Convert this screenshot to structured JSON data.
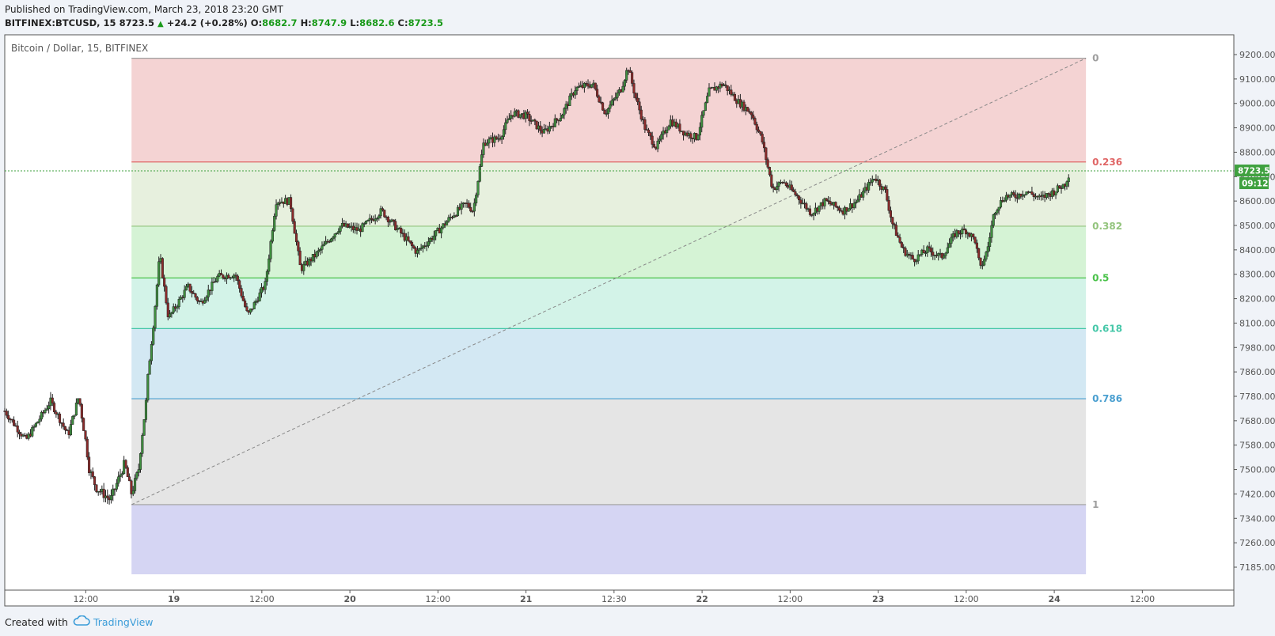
{
  "header": {
    "published": "Published on TradingView.com, March 23, 2018 23:20 GMT",
    "symbol": "BITFINEX:BTCUSD, 15",
    "last": "8723.5",
    "change": "+24.2 (+0.28%)",
    "o_label": "O:",
    "o_value": "8682.7",
    "h_label": "H:",
    "h_value": "8747.9",
    "l_label": "L:",
    "l_value": "8682.6",
    "c_label": "C:",
    "c_value": "8723.5"
  },
  "footer": {
    "created_with": "Created with",
    "brand": "TradingView"
  },
  "chart_data": {
    "type": "candlestick",
    "title": "Bitcoin / Dollar, 15, BITFINEX",
    "ylim": [
      7150,
      9260
    ],
    "y_ticks": [
      "9200.00",
      "9100.00",
      "9000.00",
      "8900.00",
      "8800.00",
      "8700.00",
      "8600.00",
      "8500.00",
      "8400.00",
      "8300.00",
      "8200.00",
      "8100.00",
      "7980.00",
      "7860.00",
      "7780.00",
      "7680.00",
      "7580.00",
      "7500.00",
      "7420.00",
      "7340.00",
      "7260.00",
      "7185.00"
    ],
    "y_tick_values": [
      9200,
      9100,
      9000,
      8900,
      8800,
      8700,
      8600,
      8500,
      8400,
      8300,
      8200,
      8100,
      7980,
      7860,
      7780,
      7680,
      7580,
      7500,
      7420,
      7340,
      7260,
      7185
    ],
    "x_ticks": [
      "12:00",
      "19",
      "12:00",
      "20",
      "12:00",
      "21",
      "12:30",
      "22",
      "12:00",
      "23",
      "12:00",
      "24",
      "12:00"
    ],
    "x_tick_values": [
      0.5,
      1,
      1.5,
      2,
      2.5,
      3,
      3.5,
      4,
      4.5,
      5,
      5.5,
      6,
      6.5
    ],
    "x_range": [
      0.04,
      6.84
    ],
    "price_line": 8723.5,
    "price_label": "8723.5",
    "countdown_label": "09:12",
    "fib": {
      "x_start": 0.76,
      "x_end": 6.18,
      "price_high": 9185,
      "price_low": 7385,
      "levels": [
        {
          "ratio": 0,
          "label": "0",
          "price": 9185,
          "color": "#9e9e9e"
        },
        {
          "ratio": 0.236,
          "label": "0.236",
          "price": 8760,
          "color": "#e06666"
        },
        {
          "ratio": 0.382,
          "label": "0.382",
          "price": 8497,
          "color": "#93c47d"
        },
        {
          "ratio": 0.5,
          "label": "0.5",
          "price": 8285,
          "color": "#4ac24a"
        },
        {
          "ratio": 0.618,
          "label": "0.618",
          "price": 8073,
          "color": "#45c7a8"
        },
        {
          "ratio": 0.786,
          "label": "0.786",
          "price": 7770,
          "color": "#4a9fd0"
        },
        {
          "ratio": 1,
          "label": "1",
          "price": 7385,
          "color": "#9e9e9e"
        }
      ],
      "zones": [
        "#f4d3d3",
        "#e7f0de",
        "#d5f3d5",
        "#d3f3e8",
        "#d3e8f3",
        "#e5e5e5",
        "#d5d5f3"
      ]
    },
    "anchors": [
      [
        0.04,
        7720
      ],
      [
        0.16,
        7600
      ],
      [
        0.3,
        7760
      ],
      [
        0.4,
        7620
      ],
      [
        0.46,
        7780
      ],
      [
        0.52,
        7500
      ],
      [
        0.56,
        7440
      ],
      [
        0.64,
        7400
      ],
      [
        0.72,
        7520
      ],
      [
        0.76,
        7420
      ],
      [
        0.8,
        7500
      ],
      [
        0.84,
        7740
      ],
      [
        0.92,
        8380
      ],
      [
        0.97,
        8120
      ],
      [
        1.08,
        8250
      ],
      [
        1.15,
        8180
      ],
      [
        1.25,
        8290
      ],
      [
        1.35,
        8300
      ],
      [
        1.42,
        8130
      ],
      [
        1.52,
        8260
      ],
      [
        1.58,
        8600
      ],
      [
        1.66,
        8600
      ],
      [
        1.72,
        8320
      ],
      [
        1.82,
        8390
      ],
      [
        1.95,
        8500
      ],
      [
        2.05,
        8480
      ],
      [
        2.18,
        8560
      ],
      [
        2.3,
        8460
      ],
      [
        2.38,
        8390
      ],
      [
        2.48,
        8460
      ],
      [
        2.58,
        8540
      ],
      [
        2.66,
        8590
      ],
      [
        2.7,
        8560
      ],
      [
        2.76,
        8840
      ],
      [
        2.85,
        8860
      ],
      [
        2.92,
        8960
      ],
      [
        3.0,
        8950
      ],
      [
        3.1,
        8880
      ],
      [
        3.2,
        8950
      ],
      [
        3.28,
        9060
      ],
      [
        3.38,
        9080
      ],
      [
        3.45,
        8960
      ],
      [
        3.54,
        9060
      ],
      [
        3.58,
        9150
      ],
      [
        3.62,
        9030
      ],
      [
        3.68,
        8890
      ],
      [
        3.74,
        8820
      ],
      [
        3.82,
        8930
      ],
      [
        3.9,
        8880
      ],
      [
        3.97,
        8860
      ],
      [
        4.04,
        9050
      ],
      [
        4.12,
        9080
      ],
      [
        4.2,
        9010
      ],
      [
        4.28,
        8960
      ],
      [
        4.34,
        8850
      ],
      [
        4.4,
        8650
      ],
      [
        4.46,
        8680
      ],
      [
        4.54,
        8620
      ],
      [
        4.62,
        8550
      ],
      [
        4.7,
        8600
      ],
      [
        4.8,
        8560
      ],
      [
        4.88,
        8600
      ],
      [
        4.98,
        8700
      ],
      [
        5.04,
        8640
      ],
      [
        5.08,
        8510
      ],
      [
        5.14,
        8400
      ],
      [
        5.2,
        8360
      ],
      [
        5.28,
        8400
      ],
      [
        5.36,
        8370
      ],
      [
        5.44,
        8470
      ],
      [
        5.5,
        8480
      ],
      [
        5.55,
        8440
      ],
      [
        5.58,
        8320
      ],
      [
        5.62,
        8400
      ],
      [
        5.66,
        8560
      ],
      [
        5.72,
        8620
      ],
      [
        5.78,
        8620
      ],
      [
        5.84,
        8640
      ],
      [
        5.92,
        8610
      ],
      [
        6.0,
        8640
      ],
      [
        6.06,
        8670
      ],
      [
        6.09,
        8723.5
      ]
    ]
  }
}
